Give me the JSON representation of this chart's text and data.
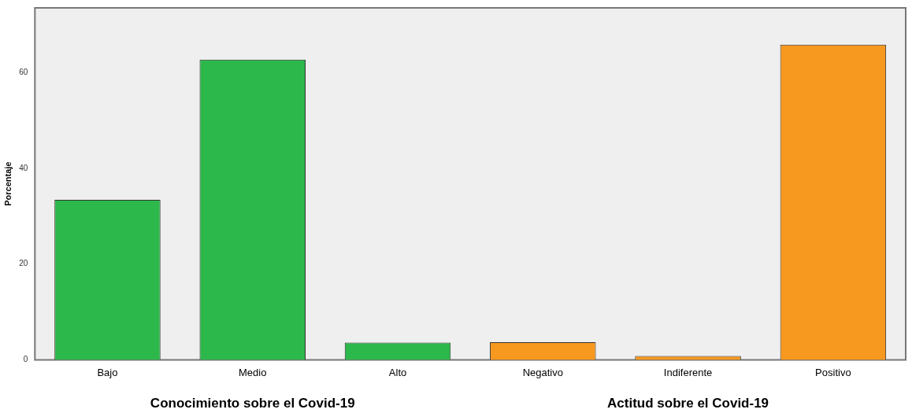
{
  "chart_data": {
    "type": "bar",
    "ylabel": "Porcentaje",
    "categories": [
      "Bajo",
      "Medio",
      "Alto",
      "Negativo",
      "Indiferente",
      "Positivo"
    ],
    "values": [
      33.4,
      62.7,
      3.6,
      3.7,
      0.8,
      65.8
    ],
    "colors": [
      "#2db84b",
      "#2db84b",
      "#2db84b",
      "#f7981f",
      "#f7981f",
      "#f7981f"
    ],
    "ylim": [
      0,
      73.5
    ],
    "yticks": [
      0,
      20,
      40,
      60
    ],
    "grid": false,
    "legend": false,
    "annotations": [
      "Conocimiento sobre el Covid-19",
      "Actitud sobre el Covid-19"
    ]
  }
}
